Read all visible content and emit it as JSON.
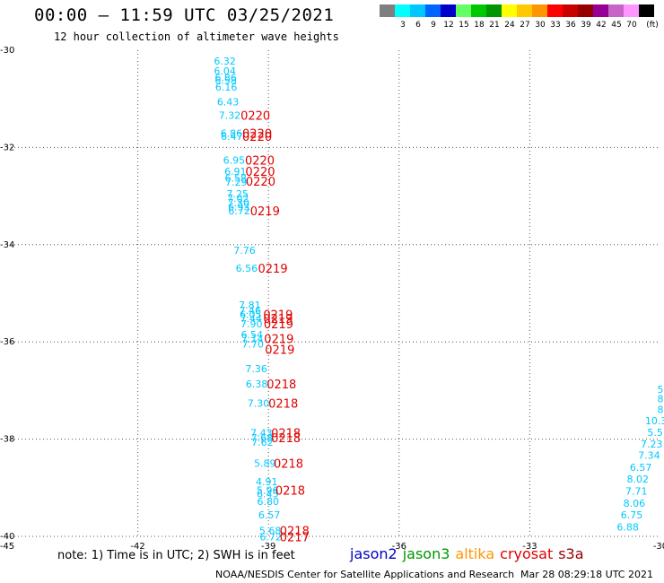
{
  "title": "00:00 — 11:59 UTC 03/25/2021",
  "subtitle": "12 hour collection of altimeter wave heights",
  "color_scale": {
    "unit": "(ft)",
    "bins": [
      {
        "label": "",
        "color": "#7f7f7f"
      },
      {
        "label": "3",
        "color": "#00ffff"
      },
      {
        "label": "6",
        "color": "#00c8ff"
      },
      {
        "label": "9",
        "color": "#0064ff"
      },
      {
        "label": "12",
        "color": "#0000c8"
      },
      {
        "label": "15",
        "color": "#64ff64"
      },
      {
        "label": "18",
        "color": "#00c800"
      },
      {
        "label": "21",
        "color": "#009600"
      },
      {
        "label": "24",
        "color": "#ffff00"
      },
      {
        "label": "27",
        "color": "#ffc800"
      },
      {
        "label": "30",
        "color": "#ff9600"
      },
      {
        "label": "33",
        "color": "#ff0000"
      },
      {
        "label": "36",
        "color": "#c80000"
      },
      {
        "label": "39",
        "color": "#960000"
      },
      {
        "label": "42",
        "color": "#960096"
      },
      {
        "label": "45",
        "color": "#c864c8"
      },
      {
        "label": "70",
        "color": "#ff96ff"
      },
      {
        "label": "",
        "color": "#000000"
      }
    ]
  },
  "chart_data": {
    "type": "scatter",
    "xlim": [
      -45,
      -30
    ],
    "ylim": [
      -40,
      -30
    ],
    "x_ticks": [
      "-45",
      "-42",
      "-39",
      "-36",
      "-33",
      "-30"
    ],
    "x_tick_values": [
      -45,
      -42,
      -39,
      -36,
      -33,
      -30
    ],
    "y_ticks": [
      "-30",
      "-32",
      "-34",
      "-36",
      "-38",
      "-40"
    ],
    "y_tick_values": [
      -30,
      -32,
      -34,
      -36,
      -38,
      -40
    ],
    "grid": true,
    "wave_heights": [
      {
        "lat": -30.22,
        "lon": -40.0,
        "value": "6.32"
      },
      {
        "lat": -30.42,
        "lon": -40.0,
        "value": "6.04"
      },
      {
        "lat": -30.56,
        "lon": -39.98,
        "value": "6.86"
      },
      {
        "lat": -30.62,
        "lon": -39.98,
        "value": "6.58"
      },
      {
        "lat": -30.76,
        "lon": -39.97,
        "value": "6.16"
      },
      {
        "lat": -31.06,
        "lon": -39.93,
        "value": "6.43"
      },
      {
        "lat": -31.34,
        "lon": -39.89,
        "value": "7.32"
      },
      {
        "lat": -31.71,
        "lon": -39.85,
        "value": "6.86"
      },
      {
        "lat": -31.77,
        "lon": -39.84,
        "value": "6.47"
      },
      {
        "lat": -32.26,
        "lon": -39.79,
        "value": "6.95"
      },
      {
        "lat": -32.49,
        "lon": -39.76,
        "value": "6.91"
      },
      {
        "lat": -32.63,
        "lon": -39.75,
        "value": "6.58"
      },
      {
        "lat": -32.71,
        "lon": -39.74,
        "value": "7.29"
      },
      {
        "lat": -32.95,
        "lon": -39.71,
        "value": "7.25"
      },
      {
        "lat": -33.04,
        "lon": -39.7,
        "value": "7.02"
      },
      {
        "lat": -33.14,
        "lon": -39.69,
        "value": "7.30"
      },
      {
        "lat": -33.22,
        "lon": -39.68,
        "value": "6.93"
      },
      {
        "lat": -33.3,
        "lon": -39.67,
        "value": "6.72"
      },
      {
        "lat": -34.11,
        "lon": -39.55,
        "value": "7.76"
      },
      {
        "lat": -34.48,
        "lon": -39.5,
        "value": "6.56"
      },
      {
        "lat": -35.24,
        "lon": -39.43,
        "value": "7.81"
      },
      {
        "lat": -35.35,
        "lon": -39.42,
        "value": "7.46"
      },
      {
        "lat": -35.43,
        "lon": -39.41,
        "value": "6.05"
      },
      {
        "lat": -35.52,
        "lon": -39.4,
        "value": "7.44"
      },
      {
        "lat": -35.63,
        "lon": -39.39,
        "value": "7.90"
      },
      {
        "lat": -35.85,
        "lon": -39.38,
        "value": "6.54"
      },
      {
        "lat": -35.93,
        "lon": -39.37,
        "value": "7.14"
      },
      {
        "lat": -36.04,
        "lon": -39.36,
        "value": "7.70"
      },
      {
        "lat": -36.55,
        "lon": -39.28,
        "value": "7.36"
      },
      {
        "lat": -36.86,
        "lon": -39.27,
        "value": "6.38"
      },
      {
        "lat": -37.26,
        "lon": -39.23,
        "value": "7.30"
      },
      {
        "lat": -37.87,
        "lon": -39.16,
        "value": "7.43"
      },
      {
        "lat": -37.97,
        "lon": -39.15,
        "value": "7.68"
      },
      {
        "lat": -38.06,
        "lon": -39.14,
        "value": "7.62"
      },
      {
        "lat": -38.5,
        "lon": -39.08,
        "value": "5.89"
      },
      {
        "lat": -38.87,
        "lon": -39.04,
        "value": "4.91"
      },
      {
        "lat": -39.05,
        "lon": -39.02,
        "value": "5.96"
      },
      {
        "lat": -39.12,
        "lon": -39.02,
        "value": "6.45"
      },
      {
        "lat": -39.28,
        "lon": -39.01,
        "value": "6.80"
      },
      {
        "lat": -39.56,
        "lon": -38.98,
        "value": "6.57"
      },
      {
        "lat": -39.88,
        "lon": -38.96,
        "value": "5.68"
      },
      {
        "lat": -40.01,
        "lon": -38.95,
        "value": "6.72"
      },
      {
        "lat": -36.97,
        "lon": -30.0,
        "value": "5"
      },
      {
        "lat": -37.17,
        "lon": -30.0,
        "value": "8"
      },
      {
        "lat": -37.39,
        "lon": -30.0,
        "value": "8"
      },
      {
        "lat": -37.62,
        "lon": -30.1,
        "value": "10.3"
      },
      {
        "lat": -37.86,
        "lon": -30.12,
        "value": "5.5"
      },
      {
        "lat": -38.1,
        "lon": -30.2,
        "value": "7.23"
      },
      {
        "lat": -38.33,
        "lon": -30.26,
        "value": "7.34"
      },
      {
        "lat": -38.58,
        "lon": -30.45,
        "value": "6.57"
      },
      {
        "lat": -38.82,
        "lon": -30.52,
        "value": "8.02"
      },
      {
        "lat": -39.07,
        "lon": -30.55,
        "value": "7.71"
      },
      {
        "lat": -39.32,
        "lon": -30.6,
        "value": "8.06"
      },
      {
        "lat": -39.56,
        "lon": -30.66,
        "value": "6.75"
      },
      {
        "lat": -39.81,
        "lon": -30.75,
        "value": "6.88"
      }
    ],
    "track_labels": [
      {
        "lat": -31.34,
        "lon": -39.3,
        "value": "0220"
      },
      {
        "lat": -31.71,
        "lon": -39.26,
        "value": "0220"
      },
      {
        "lat": -31.77,
        "lon": -39.26,
        "value": "0220"
      },
      {
        "lat": -32.26,
        "lon": -39.2,
        "value": "0220"
      },
      {
        "lat": -32.49,
        "lon": -39.19,
        "value": "0220"
      },
      {
        "lat": -32.69,
        "lon": -39.18,
        "value": "0220"
      },
      {
        "lat": -33.3,
        "lon": -39.08,
        "value": "0219"
      },
      {
        "lat": -34.48,
        "lon": -38.9,
        "value": "0219"
      },
      {
        "lat": -35.43,
        "lon": -38.78,
        "value": "0219"
      },
      {
        "lat": -35.52,
        "lon": -38.78,
        "value": "0219"
      },
      {
        "lat": -35.63,
        "lon": -38.77,
        "value": "0219"
      },
      {
        "lat": -35.93,
        "lon": -38.76,
        "value": "0219"
      },
      {
        "lat": -36.15,
        "lon": -38.74,
        "value": "0219"
      },
      {
        "lat": -36.86,
        "lon": -38.7,
        "value": "0218"
      },
      {
        "lat": -37.26,
        "lon": -38.66,
        "value": "0218"
      },
      {
        "lat": -37.87,
        "lon": -38.6,
        "value": "0218"
      },
      {
        "lat": -37.97,
        "lon": -38.6,
        "value": "0218"
      },
      {
        "lat": -38.5,
        "lon": -38.54,
        "value": "0218"
      },
      {
        "lat": -39.05,
        "lon": -38.5,
        "value": "0218"
      },
      {
        "lat": -39.88,
        "lon": -38.4,
        "value": "0218"
      },
      {
        "lat": -40.01,
        "lon": -38.4,
        "value": "0217"
      }
    ],
    "wave_color": "#00c8ff",
    "track_color": "#e00000"
  },
  "note": "note: 1) Time is in UTC; 2) SWH is in feet",
  "satellites": [
    {
      "name": "jason2",
      "color": "#0000c8"
    },
    {
      "name": "jason3",
      "color": "#009600"
    },
    {
      "name": "altika",
      "color": "#ff9600"
    },
    {
      "name": "cryosat",
      "color": "#e00000"
    },
    {
      "name": "s3a",
      "color": "#960000"
    }
  ],
  "credit": "NOAA/NESDIS Center for Satellite Applications and Research",
  "timestamp": "Mar 28 08:29:18 UTC 2021"
}
